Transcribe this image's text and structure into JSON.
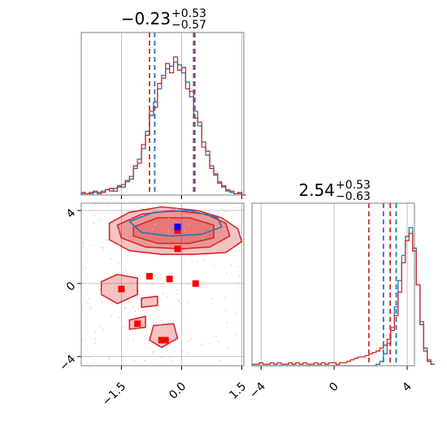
{
  "colors": {
    "series_a": "#d62728",
    "series_b": "#1f77b4",
    "marker_red": "#ff0000",
    "marker_blue": "#0000ff",
    "grid": "#b0b0b0",
    "frame": "#7f7f7f"
  },
  "chart_data": [
    {
      "type": "histogram",
      "panel": "top-left",
      "title_main": "−0.23",
      "title_sup": "+0.53",
      "title_sub": "−0.57",
      "xlim": [
        -2.5,
        1.55
      ],
      "grid": true,
      "series": [
        {
          "color": "#1f77b4",
          "bin_start": -2.5,
          "bin_width": 0.1,
          "counts": [
            1,
            1,
            1,
            2,
            2,
            3,
            4,
            3,
            5,
            6,
            8,
            10,
            14,
            20,
            27,
            35,
            48,
            60,
            70,
            80,
            90,
            95,
            97,
            100,
            98,
            92,
            85,
            74,
            63,
            52,
            40,
            30,
            22,
            15,
            10,
            6,
            4,
            2,
            1,
            1,
            0
          ],
          "quantiles": [
            -0.67,
            0.33
          ]
        },
        {
          "color": "#d62728",
          "bin_start": -2.5,
          "bin_width": 0.1,
          "counts": [
            2,
            1,
            2,
            3,
            1,
            2,
            4,
            5,
            3,
            7,
            6,
            11,
            12,
            22,
            24,
            38,
            45,
            63,
            66,
            84,
            88,
            99,
            92,
            104,
            94,
            96,
            80,
            78,
            58,
            55,
            36,
            33,
            20,
            16,
            9,
            7,
            3,
            3,
            1,
            2,
            0
          ],
          "quantiles": [
            -0.8,
            0.3
          ]
        }
      ]
    },
    {
      "type": "scatter",
      "panel": "bottom-left",
      "xlim": [
        -2.5,
        1.55
      ],
      "ylim": [
        -4.5,
        4.4
      ],
      "x_ticks": [
        "−1.5",
        "0.0",
        "1.5"
      ],
      "x_tick_values": [
        -1.5,
        0.0,
        1.5
      ],
      "y_ticks": [
        "4",
        "0",
        "−4"
      ],
      "y_tick_values": [
        4,
        0,
        -4
      ],
      "grid": true,
      "red_markers": [
        [
          -0.1,
          2.9
        ],
        [
          -0.1,
          1.9
        ],
        [
          -0.8,
          0.4
        ],
        [
          -0.3,
          0.25
        ],
        [
          0.35,
          0.0
        ],
        [
          -1.5,
          -0.3
        ],
        [
          -1.1,
          -2.2
        ],
        [
          -0.5,
          -3.1
        ],
        [
          -0.4,
          -3.1
        ]
      ],
      "blue_markers": [
        [
          -0.1,
          3.1
        ]
      ],
      "contours": [
        {
          "color": "#d62728",
          "points": [
            [
              -1.8,
              3.3
            ],
            [
              -1.3,
              3.9
            ],
            [
              -0.5,
              4.2
            ],
            [
              0.4,
              4.0
            ],
            [
              1.0,
              3.6
            ],
            [
              1.4,
              3.0
            ],
            [
              1.5,
              2.3
            ],
            [
              1.1,
              1.7
            ],
            [
              0.3,
              1.6
            ],
            [
              -0.5,
              1.6
            ],
            [
              -1.3,
              1.8
            ],
            [
              -1.8,
              2.4
            ]
          ]
        },
        {
          "color": "#d62728",
          "points": [
            [
              -1.6,
              3.2
            ],
            [
              -1.0,
              3.8
            ],
            [
              -0.2,
              4.0
            ],
            [
              0.6,
              3.8
            ],
            [
              1.1,
              3.3
            ],
            [
              1.2,
              2.6
            ],
            [
              0.7,
              2.0
            ],
            [
              0.0,
              1.9
            ],
            [
              -0.9,
              2.0
            ],
            [
              -1.5,
              2.5
            ]
          ]
        },
        {
          "color": "#d62728",
          "points": [
            [
              -1.2,
              3.1
            ],
            [
              -0.6,
              3.6
            ],
            [
              0.2,
              3.6
            ],
            [
              0.8,
              3.2
            ],
            [
              0.8,
              2.5
            ],
            [
              0.2,
              2.2
            ],
            [
              -0.6,
              2.2
            ],
            [
              -1.2,
              2.6
            ]
          ]
        },
        {
          "color": "#1f77b4",
          "points": [
            [
              -1.3,
              3.4
            ],
            [
              -0.7,
              3.9
            ],
            [
              0.2,
              4.0
            ],
            [
              0.9,
              3.6
            ],
            [
              1.0,
              3.1
            ],
            [
              0.5,
              2.7
            ],
            [
              -0.3,
              2.6
            ],
            [
              -1.0,
              2.8
            ]
          ]
        },
        {
          "color": "#d62728",
          "points": [
            [
              -2.0,
              0.1
            ],
            [
              -1.6,
              0.5
            ],
            [
              -1.1,
              0.3
            ],
            [
              -1.1,
              -0.6
            ],
            [
              -1.6,
              -1.1
            ],
            [
              -2.0,
              -0.6
            ]
          ]
        },
        {
          "color": "#d62728",
          "points": [
            [
              -1.3,
              -2.0
            ],
            [
              -0.9,
              -1.8
            ],
            [
              -0.9,
              -2.4
            ],
            [
              -1.3,
              -2.5
            ]
          ]
        },
        {
          "color": "#d62728",
          "points": [
            [
              -0.7,
              -2.3
            ],
            [
              -0.2,
              -2.2
            ],
            [
              -0.1,
              -3.0
            ],
            [
              -0.5,
              -3.5
            ],
            [
              -0.8,
              -3.1
            ]
          ]
        },
        {
          "color": "#d62728",
          "points": [
            [
              -1.0,
              -0.8
            ],
            [
              -0.6,
              -0.7
            ],
            [
              -0.6,
              -1.2
            ],
            [
              -1.0,
              -1.3
            ]
          ]
        }
      ]
    },
    {
      "type": "histogram",
      "panel": "bottom-right",
      "title_main": "2.54",
      "title_sup": "+0.53",
      "title_sub": "−0.63",
      "xlim": [
        -4.5,
        4.4
      ],
      "x_ticks": [
        "−4",
        "0",
        "4"
      ],
      "x_tick_values": [
        -4,
        0,
        4
      ],
      "grid": true,
      "series": [
        {
          "color": "#1f77b4",
          "bin_start": -4.5,
          "bin_width": 0.2,
          "counts": [
            0,
            0,
            0,
            0,
            0,
            0,
            0,
            0,
            0,
            0,
            0,
            0,
            0,
            0,
            0,
            0,
            0,
            0,
            0,
            0,
            0,
            0,
            0,
            0,
            0,
            0,
            0,
            0,
            0,
            0,
            0,
            0,
            0,
            0,
            1,
            3,
            8,
            15,
            26,
            40,
            58,
            75,
            88,
            94,
            80,
            55,
            30,
            12,
            4,
            1
          ],
          "quantiles": [
            2.7,
            3.4
          ]
        },
        {
          "color": "#d62728",
          "bin_start": -4.5,
          "bin_width": 0.2,
          "counts": [
            1,
            1,
            2,
            1,
            1,
            2,
            1,
            2,
            1,
            1,
            2,
            1,
            2,
            1,
            2,
            1,
            1,
            2,
            1,
            2,
            1,
            2,
            2,
            1,
            2,
            2,
            3,
            4,
            5,
            6,
            6,
            7,
            8,
            9,
            10,
            12,
            14,
            18,
            24,
            34,
            50,
            70,
            85,
            90,
            78,
            55,
            28,
            10,
            3,
            1
          ],
          "quantiles": [
            1.9,
            3.07
          ]
        }
      ]
    }
  ]
}
